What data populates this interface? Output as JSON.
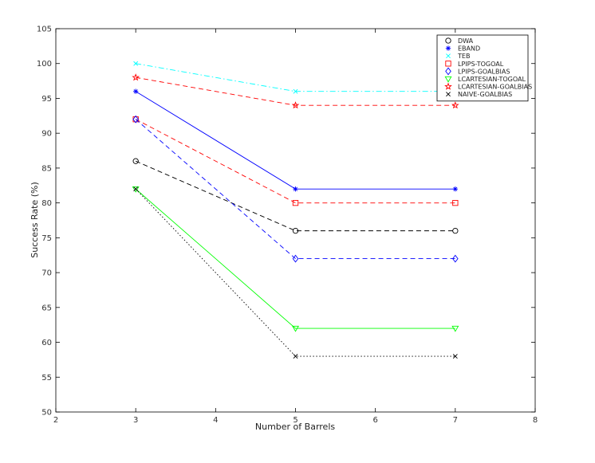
{
  "chart_data": {
    "type": "line",
    "title": "",
    "xlabel": "Number of Barrels",
    "ylabel": "Success Rate (%)",
    "xlim": [
      2,
      8
    ],
    "ylim": [
      50,
      105
    ],
    "xticks": [
      "2",
      "3",
      "4",
      "5",
      "6",
      "7",
      "8"
    ],
    "yticks": [
      "50",
      "55",
      "60",
      "65",
      "70",
      "75",
      "80",
      "85",
      "90",
      "95",
      "100",
      "105"
    ],
    "grid": false,
    "legend_position": "top-right",
    "x": [
      3,
      5,
      7
    ],
    "series": [
      {
        "name": "DWA",
        "values": [
          86,
          76,
          76
        ],
        "color": "#000000",
        "dash": "dashed",
        "marker": "circle"
      },
      {
        "name": "EBAND",
        "values": [
          96,
          82,
          82
        ],
        "color": "#0000ff",
        "dash": "solid",
        "marker": "star"
      },
      {
        "name": "TEB",
        "values": [
          100,
          96,
          96
        ],
        "color": "#00ffff",
        "dash": "dashdot",
        "marker": "x"
      },
      {
        "name": "LPIPS-TOGOAL",
        "values": [
          92,
          80,
          80
        ],
        "color": "#ff0000",
        "dash": "dashed",
        "marker": "square"
      },
      {
        "name": "LPIPS-GOALBIAS",
        "values": [
          92,
          72,
          72
        ],
        "color": "#0000ff",
        "dash": "dashed",
        "marker": "diamond"
      },
      {
        "name": "LCARTESIAN-TOGOAL",
        "values": [
          82,
          62,
          62
        ],
        "color": "#00ff00",
        "dash": "solid",
        "marker": "triangle-down"
      },
      {
        "name": "LCARTESIAN-GOALBIAS",
        "values": [
          98,
          94,
          94
        ],
        "color": "#ff0000",
        "dash": "dashed",
        "marker": "pentagram"
      },
      {
        "name": "NAIVE-GOALBIAS",
        "values": [
          82,
          58,
          58
        ],
        "color": "#000000",
        "dash": "dotted",
        "marker": "x"
      }
    ]
  }
}
